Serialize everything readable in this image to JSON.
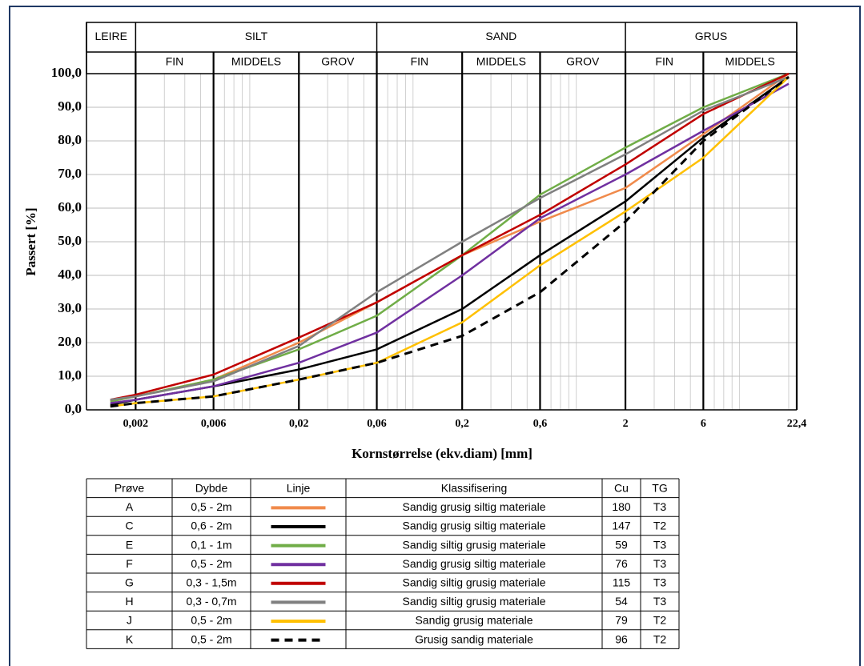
{
  "chart_data": {
    "type": "line",
    "log_x": true,
    "ylabel": "Passert [%]",
    "xlabel": "Kornstørrelse (ekv.diam) [mm]",
    "xlim": [
      0.001,
      22.4
    ],
    "xticks": [
      {
        "value": 0.002,
        "label": "0,002"
      },
      {
        "value": 0.006,
        "label": "0,006"
      },
      {
        "value": 0.02,
        "label": "0,02"
      },
      {
        "value": 0.06,
        "label": "0,06"
      },
      {
        "value": 0.2,
        "label": "0,2"
      },
      {
        "value": 0.6,
        "label": "0,6"
      },
      2,
      6,
      {
        "value": 22.4,
        "label": "22,4"
      }
    ],
    "ylim": [
      0,
      100
    ],
    "yticks": [
      {
        "value": 0,
        "label": "0,0"
      },
      {
        "value": 10,
        "label": "10,0"
      },
      {
        "value": 20,
        "label": "20,0"
      },
      {
        "value": 30,
        "label": "30,0"
      },
      {
        "value": 40,
        "label": "40,0"
      },
      {
        "value": 50,
        "label": "50,0"
      },
      {
        "value": 60,
        "label": "60,0"
      },
      {
        "value": 70,
        "label": "70,0"
      },
      {
        "value": 80,
        "label": "80,0"
      },
      {
        "value": 90,
        "label": "90,0"
      },
      {
        "value": 100,
        "label": "100,0"
      }
    ],
    "grid": true,
    "zones": [
      {
        "label": "LEIRE",
        "from": 0.001,
        "to": 0.002
      },
      {
        "label": "SILT",
        "from": 0.002,
        "to": 0.06
      },
      {
        "label": "SAND",
        "from": 0.06,
        "to": 2
      },
      {
        "label": "GRUS",
        "from": 2,
        "to": 22.4
      }
    ],
    "subzones": [
      {
        "label": "FIN",
        "from": 0.002,
        "to": 0.006
      },
      {
        "label": "MIDDELS",
        "from": 0.006,
        "to": 0.02
      },
      {
        "label": "GROV",
        "from": 0.02,
        "to": 0.06
      },
      {
        "label": "FIN",
        "from": 0.06,
        "to": 0.2
      },
      {
        "label": "MIDDELS",
        "from": 0.2,
        "to": 0.6
      },
      {
        "label": "GROV",
        "from": 0.6,
        "to": 2
      },
      {
        "label": "FIN",
        "from": 2,
        "to": 6
      },
      {
        "label": "MIDDELS",
        "from": 6,
        "to": 22.4
      }
    ],
    "x": [
      0.0014,
      0.002,
      0.006,
      0.02,
      0.06,
      0.2,
      0.6,
      2,
      6,
      20
    ],
    "series": [
      {
        "name": "A",
        "color": "#f08a4b",
        "dashed": false,
        "values": [
          2.5,
          4,
          9,
          20,
          32,
          46,
          56,
          66,
          82,
          100
        ]
      },
      {
        "name": "C",
        "color": "#000000",
        "dashed": false,
        "values": [
          1.5,
          3,
          7,
          12,
          18,
          30,
          46,
          62,
          81,
          99
        ]
      },
      {
        "name": "E",
        "color": "#70ad47",
        "dashed": false,
        "values": [
          2.5,
          4,
          9,
          18,
          28,
          46,
          64,
          78,
          90,
          100
        ]
      },
      {
        "name": "F",
        "color": "#7030a0",
        "dashed": false,
        "values": [
          2,
          3,
          7,
          14,
          23,
          40,
          57,
          70,
          83,
          97
        ]
      },
      {
        "name": "G",
        "color": "#c00000",
        "dashed": false,
        "values": [
          3,
          4.5,
          10.5,
          21.5,
          32,
          46,
          58,
          73,
          88,
          100
        ]
      },
      {
        "name": "H",
        "color": "#808080",
        "dashed": false,
        "values": [
          3,
          4,
          8.5,
          19,
          35,
          50,
          63,
          76,
          89,
          99
        ]
      },
      {
        "name": "J",
        "color": "#ffc000",
        "dashed": false,
        "values": [
          1,
          2,
          4,
          9,
          14,
          26,
          43,
          59,
          75,
          99
        ]
      },
      {
        "name": "K",
        "color": "#000000",
        "dashed": true,
        "values": [
          1,
          2,
          4,
          9,
          14,
          22,
          35,
          56,
          80,
          99
        ]
      }
    ]
  },
  "table": {
    "headers": [
      "Prøve",
      "Dybde",
      "Linje",
      "Klassifisering",
      "Cu",
      "TG"
    ],
    "rows": [
      [
        "0,5 - 2m",
        "Sandig grusig siltig materiale",
        180,
        "T3"
      ],
      [
        "0,6 - 2m",
        "Sandig grusig siltig materiale",
        147,
        "T2"
      ],
      [
        "0,1 - 1m",
        "Sandig siltig grusig materiale",
        59,
        "T3"
      ],
      [
        "0,5 - 2m",
        "Sandig grusig siltig materiale",
        76,
        "T3"
      ],
      [
        "0,3 - 1,5m",
        "Sandig siltig grusig materiale",
        115,
        "T3"
      ],
      [
        "0,3 - 0,7m",
        "Sandig siltig grusig materiale",
        54,
        "T3"
      ],
      [
        "0,5 - 2m",
        "Sandig grusig materiale",
        79,
        "T2"
      ],
      [
        "0,5 - 2m",
        "Grusig sandig materiale",
        96,
        "T2"
      ]
    ]
  }
}
